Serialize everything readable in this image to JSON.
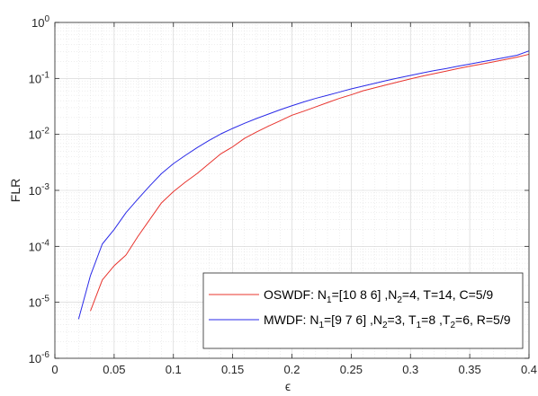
{
  "chart_data": {
    "type": "line",
    "xlabel": "ϵ",
    "ylabel": "FLR",
    "xlim": [
      0,
      0.4
    ],
    "ylim_log10": [
      -6,
      0
    ],
    "yscale": "log",
    "grid": true,
    "minor_grid": true,
    "legend_position": "bottom-right",
    "x_ticks": [
      "0",
      "0.05",
      "0.1",
      "0.15",
      "0.2",
      "0.25",
      "0.3",
      "0.35",
      "0.4"
    ],
    "y_ticks": [
      {
        "base": "10",
        "exp": "-6"
      },
      {
        "base": "10",
        "exp": "-5"
      },
      {
        "base": "10",
        "exp": "-4"
      },
      {
        "base": "10",
        "exp": "-3"
      },
      {
        "base": "10",
        "exp": "-2"
      },
      {
        "base": "10",
        "exp": "-1"
      },
      {
        "base": "10",
        "exp": "0"
      }
    ],
    "series": [
      {
        "legend": [
          {
            "t": "OSWDF: N",
            "s": false
          },
          {
            "t": "1",
            "s": true
          },
          {
            "t": "=[10 8 6] ,N",
            "s": false
          },
          {
            "t": "2",
            "s": true
          },
          {
            "t": "=4, T=14, C=5/9",
            "s": false
          }
        ],
        "color": "#e8342e",
        "x": [
          0.03,
          0.04,
          0.05,
          0.06,
          0.07,
          0.08,
          0.09,
          0.1,
          0.11,
          0.12,
          0.13,
          0.14,
          0.15,
          0.16,
          0.17,
          0.18,
          0.19,
          0.2,
          0.21,
          0.22,
          0.23,
          0.24,
          0.25,
          0.26,
          0.27,
          0.28,
          0.29,
          0.3,
          0.31,
          0.32,
          0.33,
          0.34,
          0.35,
          0.36,
          0.37,
          0.38,
          0.39,
          0.4
        ],
        "y": [
          7e-06,
          2.5e-05,
          4.5e-05,
          7e-05,
          0.00015,
          0.0003,
          0.0006,
          0.00095,
          0.0014,
          0.002,
          0.003,
          0.0045,
          0.006,
          0.0085,
          0.011,
          0.014,
          0.0175,
          0.022,
          0.026,
          0.031,
          0.037,
          0.044,
          0.051,
          0.06,
          0.068,
          0.077,
          0.087,
          0.098,
          0.11,
          0.122,
          0.135,
          0.15,
          0.165,
          0.18,
          0.198,
          0.218,
          0.24,
          0.27
        ]
      },
      {
        "legend": [
          {
            "t": "MWDF: N",
            "s": false
          },
          {
            "t": "1",
            "s": true
          },
          {
            "t": "=[9 7 6] ,N",
            "s": false
          },
          {
            "t": "2",
            "s": true
          },
          {
            "t": "=3, T",
            "s": false
          },
          {
            "t": "1",
            "s": true
          },
          {
            "t": "=8 ,T",
            "s": false
          },
          {
            "t": "2",
            "s": true
          },
          {
            "t": "=6, R=5/9",
            "s": false
          }
        ],
        "color": "#2a2ae8",
        "x": [
          0.02,
          0.03,
          0.04,
          0.05,
          0.06,
          0.07,
          0.08,
          0.09,
          0.1,
          0.11,
          0.12,
          0.13,
          0.14,
          0.15,
          0.16,
          0.17,
          0.18,
          0.19,
          0.2,
          0.21,
          0.22,
          0.23,
          0.24,
          0.25,
          0.26,
          0.27,
          0.28,
          0.29,
          0.3,
          0.31,
          0.32,
          0.33,
          0.34,
          0.35,
          0.36,
          0.37,
          0.38,
          0.39,
          0.4
        ],
        "y": [
          5e-06,
          3e-05,
          0.00011,
          0.0002,
          0.0004,
          0.0007,
          0.0012,
          0.002,
          0.003,
          0.0042,
          0.0058,
          0.0078,
          0.0102,
          0.0128,
          0.0158,
          0.0192,
          0.023,
          0.0275,
          0.0325,
          0.038,
          0.044,
          0.05,
          0.057,
          0.065,
          0.073,
          0.082,
          0.092,
          0.102,
          0.113,
          0.125,
          0.138,
          0.15,
          0.165,
          0.18,
          0.198,
          0.216,
          0.237,
          0.26,
          0.31
        ]
      }
    ]
  }
}
